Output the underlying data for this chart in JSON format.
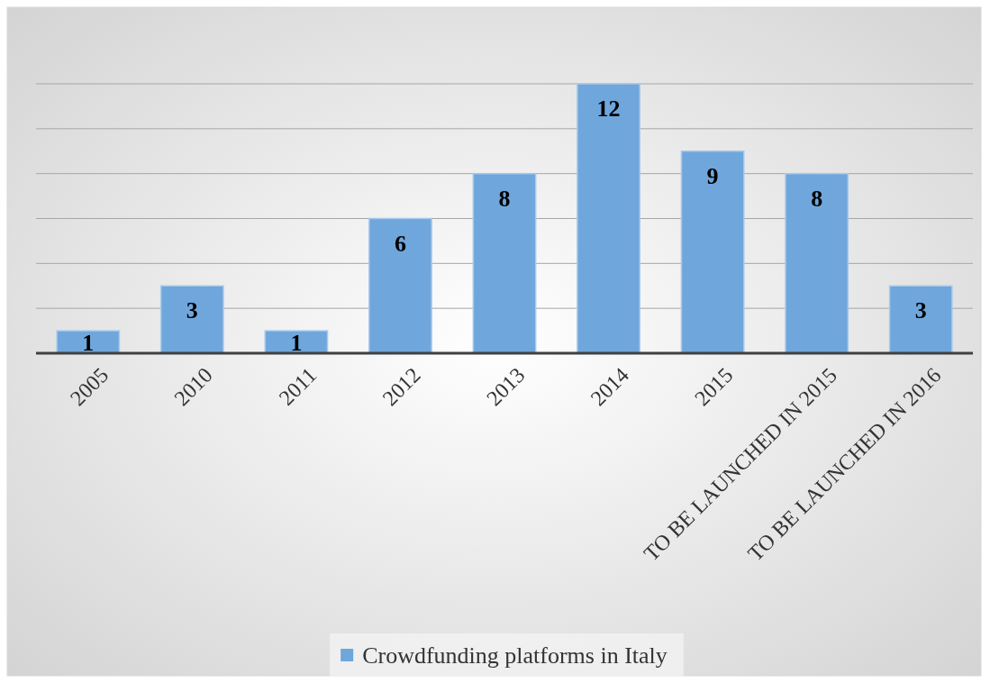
{
  "chart_data": {
    "type": "bar",
    "categories": [
      "2005",
      "2010",
      "2011",
      "2012",
      "2013",
      "2014",
      "2015",
      "TO BE LAUNCHED IN 2015",
      "TO BE LAUNCHED IN 2016"
    ],
    "series": [
      {
        "name": "Crowdfunding platforms in Italy",
        "color": "#6fa6dc",
        "values": [
          1,
          3,
          1,
          6,
          8,
          12,
          9,
          8,
          3
        ]
      }
    ],
    "ylim": [
      0,
      12
    ],
    "yticks": [
      {
        "value": 0,
        "label": null
      },
      {
        "value": 2,
        "label": null
      },
      {
        "value": 4,
        "label": null
      },
      {
        "value": 6,
        "label": null
      },
      {
        "value": 8,
        "label": null
      },
      {
        "value": 10,
        "label": null
      },
      {
        "value": 12,
        "label": null
      }
    ],
    "grid": "y",
    "data_labels": true,
    "legend": "bottom",
    "tick_labels": "x"
  }
}
